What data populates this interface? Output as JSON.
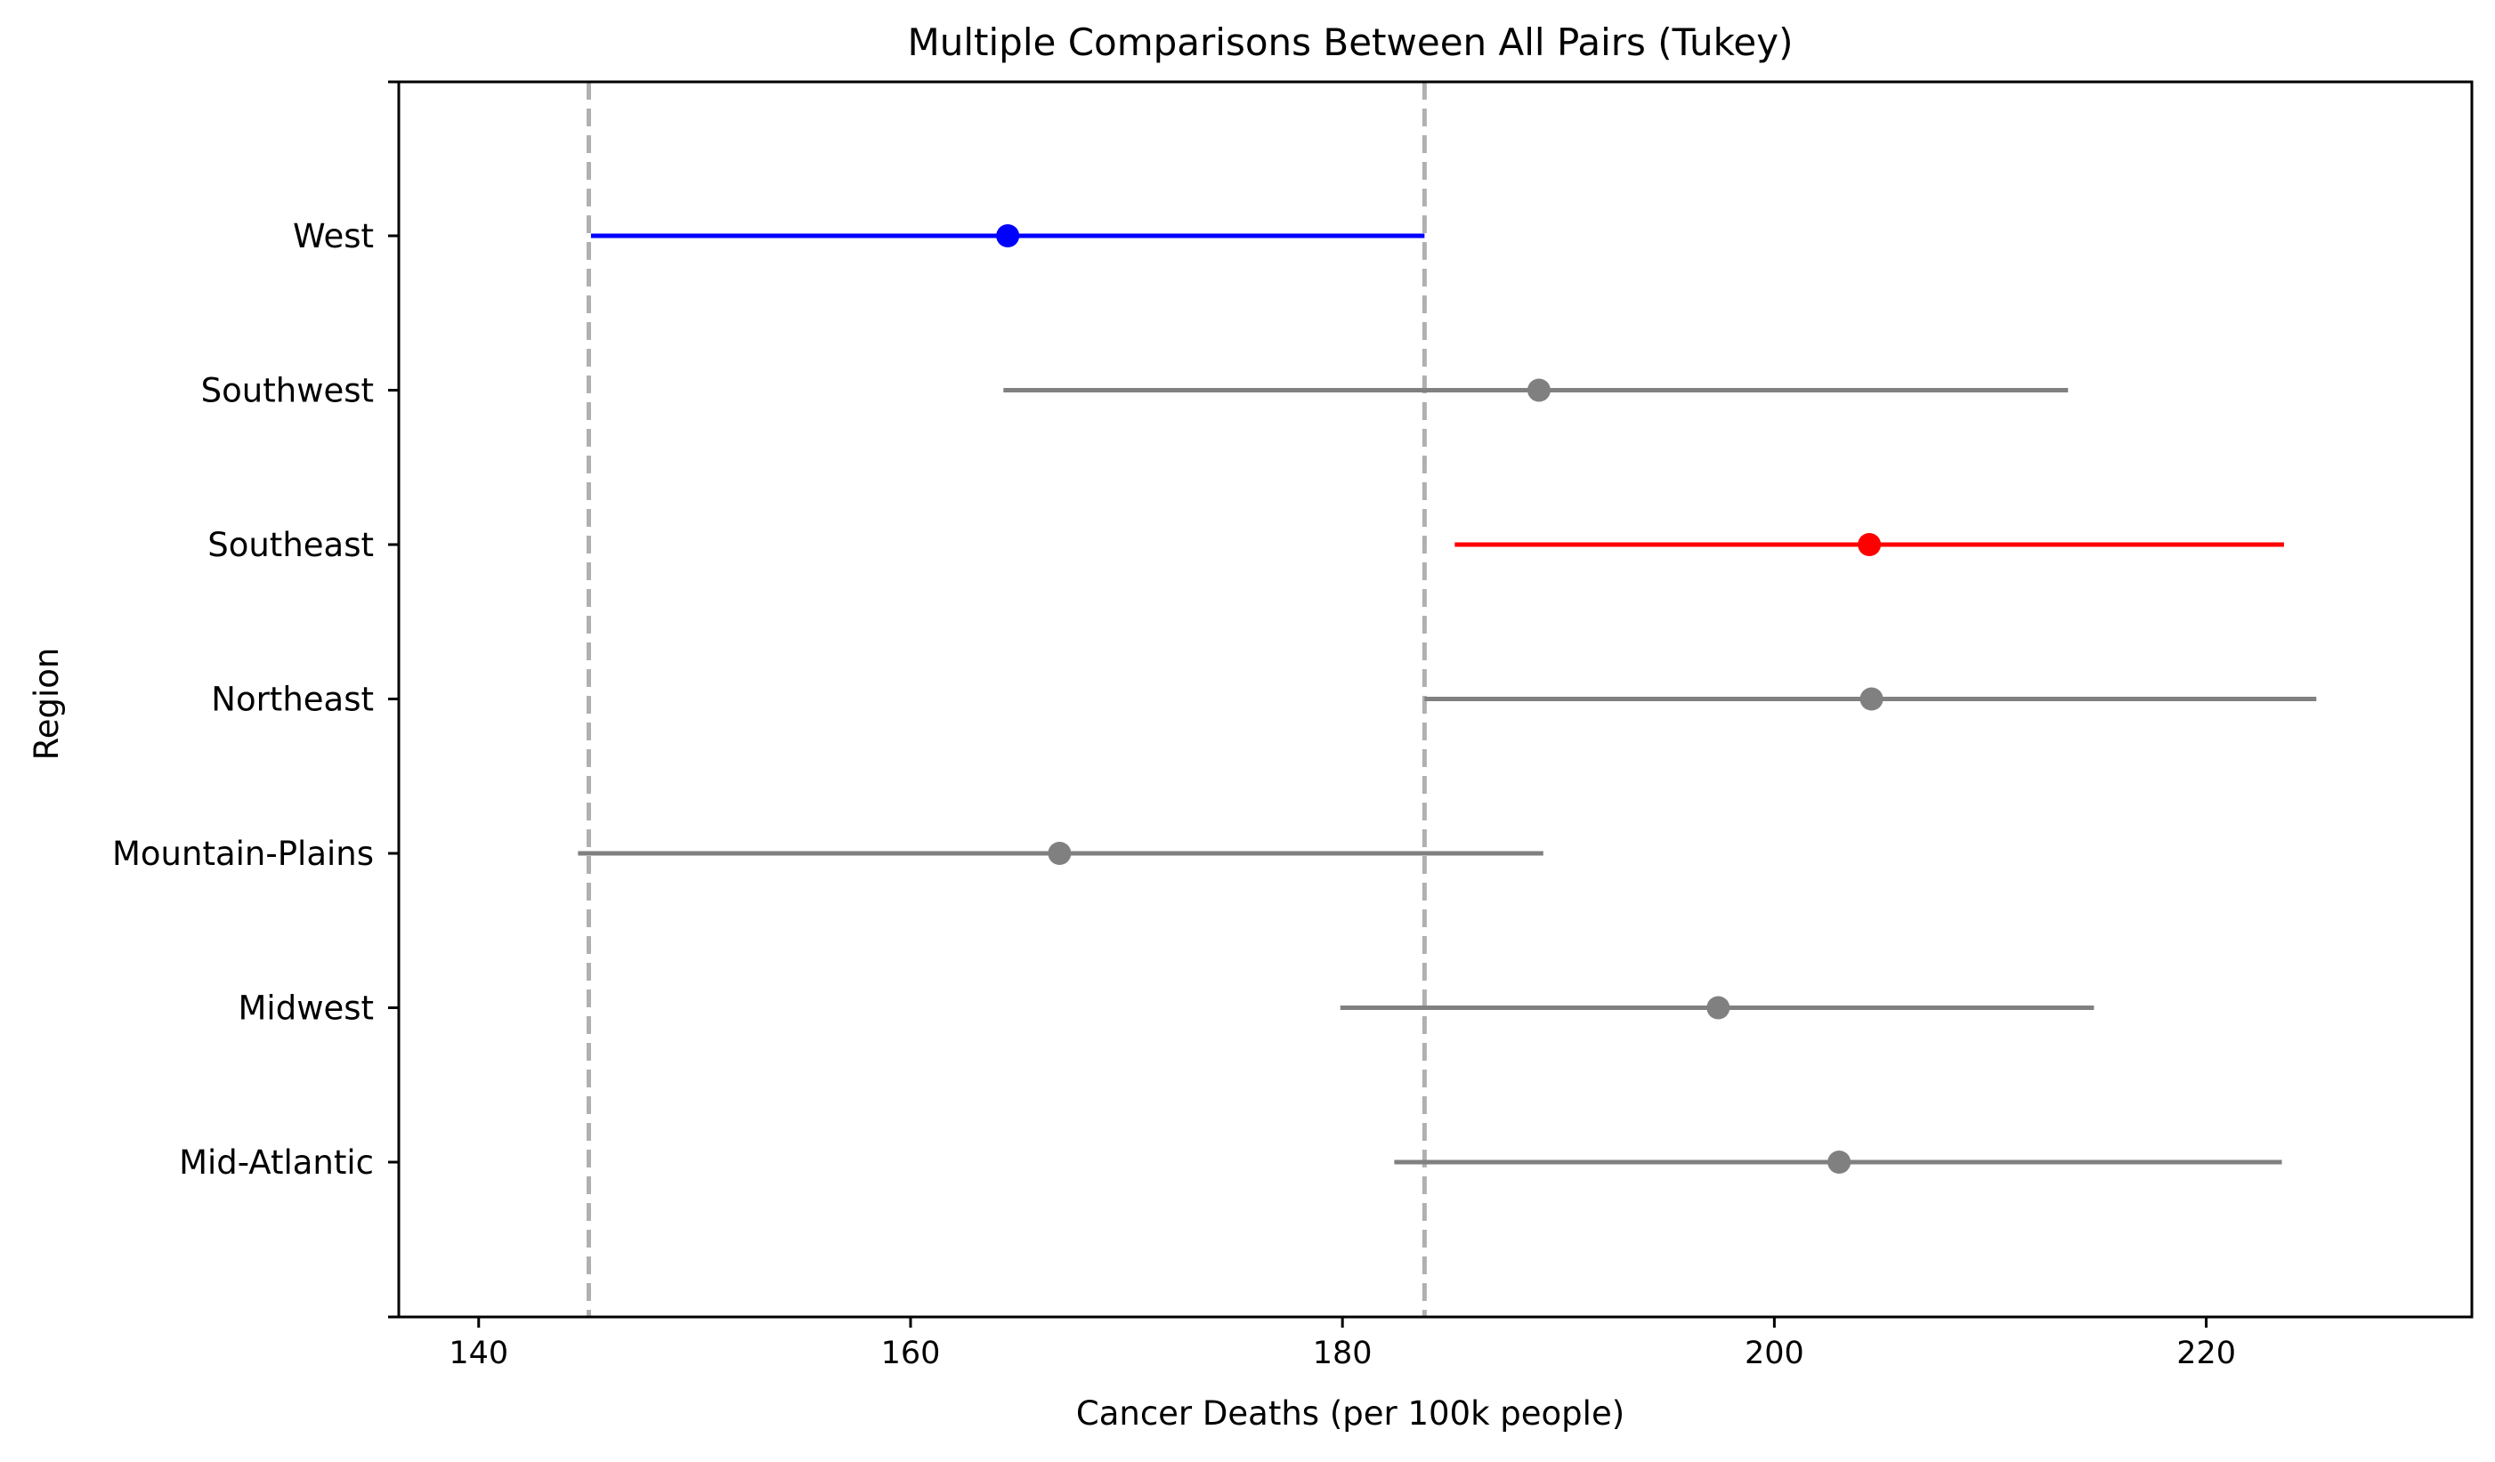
{
  "chart_data": {
    "type": "errorbar",
    "title": "Multiple Comparisons Between All Pairs (Tukey)",
    "xlabel": "Cancer Deaths (per 100k people)",
    "ylabel": "Region",
    "xlim": [
      136.3,
      232.3
    ],
    "x_ticks": [
      140,
      160,
      180,
      200,
      220
    ],
    "reference_lines": [
      145.1,
      183.8
    ],
    "grid": false,
    "colors": {
      "highlight_low": "#0000ff",
      "highlight_high": "#ff0000",
      "other": "#808080",
      "reference": "#b0b0b0"
    },
    "categories": [
      "West",
      "Southwest",
      "Southeast",
      "Northeast",
      "Mountain-Plains",
      "Midwest",
      "Mid-Atlantic"
    ],
    "series": [
      {
        "category": "West",
        "mean": 164.5,
        "lower": 145.2,
        "upper": 183.8,
        "color": "#0000ff"
      },
      {
        "category": "Southwest",
        "mean": 189.1,
        "lower": 164.3,
        "upper": 213.6,
        "color": "#808080"
      },
      {
        "category": "Southeast",
        "mean": 204.4,
        "lower": 185.2,
        "upper": 223.6,
        "color": "#ff0000"
      },
      {
        "category": "Northeast",
        "mean": 204.5,
        "lower": 183.8,
        "upper": 225.1,
        "color": "#808080"
      },
      {
        "category": "Mountain-Plains",
        "mean": 166.9,
        "lower": 144.6,
        "upper": 189.3,
        "color": "#808080"
      },
      {
        "category": "Midwest",
        "mean": 197.4,
        "lower": 179.9,
        "upper": 214.8,
        "color": "#808080"
      },
      {
        "category": "Mid-Atlantic",
        "mean": 203.0,
        "lower": 182.4,
        "upper": 223.5,
        "color": "#808080"
      }
    ]
  }
}
